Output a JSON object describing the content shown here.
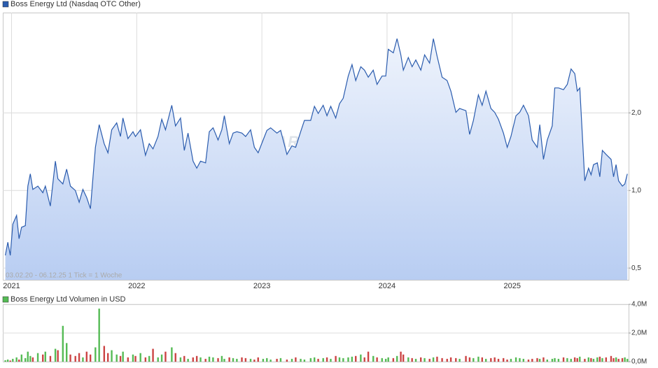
{
  "chart_data": [
    {
      "type": "line",
      "log": true,
      "grid": true,
      "annotation": "03.02.20 - 06.12.25   1 Tick = 1 Woche",
      "watermark": "ARIVA.DE",
      "xlim": [
        2020.93,
        2025.93
      ],
      "xticks": [
        2021,
        2022,
        2023,
        2024,
        2025
      ],
      "ylim": [
        0.45,
        4.9
      ],
      "yticks": [
        {
          "value": 0.5,
          "label": "0,5"
        },
        {
          "value": 1.0,
          "label": "1,0"
        },
        {
          "value": 2.0,
          "label": "2,0"
        }
      ],
      "x": [
        2020.95,
        2020.97,
        2020.99,
        2021.01,
        2021.04,
        2021.06,
        2021.08,
        2021.11,
        2021.13,
        2021.15,
        2021.17,
        2021.21,
        2021.25,
        2021.27,
        2021.31,
        2021.35,
        2021.37,
        2021.41,
        2021.44,
        2021.47,
        2021.51,
        2021.54,
        2021.57,
        2021.6,
        2021.63,
        2021.67,
        2021.7,
        2021.74,
        2021.77,
        2021.8,
        2021.84,
        2021.87,
        2021.89,
        2021.93,
        2021.97,
        2021.99,
        2022.03,
        2022.07,
        2022.1,
        2022.13,
        2022.17,
        2022.2,
        2022.23,
        2022.28,
        2022.31,
        2022.35,
        2022.38,
        2022.41,
        2022.45,
        2022.48,
        2022.51,
        2022.55,
        2022.58,
        2022.61,
        2022.65,
        2022.68,
        2022.7,
        2022.74,
        2022.77,
        2022.8,
        2022.84,
        2022.87,
        2022.91,
        2022.94,
        2022.97,
        2023.01,
        2023.04,
        2023.07,
        2023.12,
        2023.15,
        2023.2,
        2023.24,
        2023.27,
        2023.31,
        2023.34,
        2023.39,
        2023.42,
        2023.45,
        2023.49,
        2023.52,
        2023.55,
        2023.59,
        2023.62,
        2023.65,
        2023.69,
        2023.72,
        2023.75,
        2023.79,
        2023.82,
        2023.85,
        2023.89,
        2023.92,
        2023.96,
        2023.99,
        2024.01,
        2024.05,
        2024.08,
        2024.11,
        2024.13,
        2024.17,
        2024.2,
        2024.23,
        2024.27,
        2024.3,
        2024.34,
        2024.37,
        2024.4,
        2024.44,
        2024.48,
        2024.51,
        2024.55,
        2024.58,
        2024.63,
        2024.66,
        2024.69,
        2024.73,
        2024.76,
        2024.79,
        2024.83,
        2024.86,
        2024.89,
        2024.93,
        2024.96,
        2024.99,
        2025.03,
        2025.06,
        2025.09,
        2025.13,
        2025.16,
        2025.2,
        2025.22,
        2025.25,
        2025.28,
        2025.32,
        2025.34,
        2025.37,
        2025.41,
        2025.44,
        2025.47,
        2025.5,
        2025.52,
        2025.54,
        2025.58,
        2025.61,
        2025.63,
        2025.65,
        2025.68,
        2025.7,
        2025.72,
        2025.75,
        2025.79,
        2025.81,
        2025.83,
        2025.85,
        2025.88,
        2025.9,
        2025.92
      ],
      "series": [
        {
          "name": "Boss Energy Ltd (Nasdaq OTC Other)",
          "color": "#2b5cae",
          "values": [
            0.56,
            0.63,
            0.56,
            0.74,
            0.8,
            0.65,
            0.72,
            0.73,
            1.04,
            1.16,
            1.01,
            1.04,
            0.98,
            1.04,
            0.87,
            1.3,
            1.11,
            1.06,
            1.21,
            1.04,
            1.0,
            0.9,
            1.01,
            0.94,
            0.85,
            1.47,
            1.8,
            1.52,
            1.4,
            1.72,
            1.83,
            1.62,
            1.91,
            1.59,
            1.69,
            1.62,
            1.72,
            1.37,
            1.52,
            1.45,
            1.62,
            1.89,
            1.72,
            2.14,
            1.78,
            1.91,
            1.43,
            1.67,
            1.3,
            1.22,
            1.3,
            1.28,
            1.69,
            1.75,
            1.57,
            1.72,
            1.95,
            1.52,
            1.67,
            1.69,
            1.67,
            1.62,
            1.72,
            1.47,
            1.4,
            1.57,
            1.71,
            1.75,
            1.67,
            1.71,
            1.38,
            1.49,
            1.47,
            1.69,
            1.87,
            1.87,
            2.12,
            1.99,
            2.14,
            1.95,
            2.12,
            1.91,
            2.17,
            2.28,
            2.78,
            3.08,
            2.67,
            3.02,
            2.93,
            2.75,
            2.93,
            2.58,
            2.78,
            2.78,
            3.53,
            3.42,
            3.88,
            3.36,
            2.93,
            3.28,
            3.02,
            3.21,
            2.93,
            3.36,
            3.12,
            3.88,
            3.32,
            2.75,
            2.67,
            2.43,
            2.01,
            2.08,
            2.04,
            1.65,
            1.87,
            2.35,
            2.14,
            2.43,
            2.08,
            2.01,
            1.89,
            1.67,
            1.47,
            1.62,
            1.95,
            2.01,
            2.14,
            1.95,
            1.57,
            1.47,
            1.8,
            1.32,
            1.57,
            1.78,
            2.5,
            2.5,
            2.46,
            2.58,
            2.96,
            2.84,
            2.43,
            2.5,
            1.09,
            1.22,
            1.15,
            1.26,
            1.28,
            1.13,
            1.43,
            1.38,
            1.32,
            1.13,
            1.26,
            1.09,
            1.04,
            1.06,
            1.16
          ]
        }
      ]
    },
    {
      "type": "bar",
      "grid": true,
      "xlim": [
        2020.93,
        2025.93
      ],
      "ylim": [
        0,
        4000000
      ],
      "yticks": [
        {
          "value": 0,
          "label": "0,0M"
        },
        {
          "value": 2000000,
          "label": "2,0M"
        },
        {
          "value": 4000000,
          "label": "4,0M"
        }
      ],
      "x": [
        2020.95,
        2020.97,
        2020.99,
        2021.01,
        2021.04,
        2021.06,
        2021.08,
        2021.11,
        2021.13,
        2021.15,
        2021.17,
        2021.21,
        2021.25,
        2021.27,
        2021.31,
        2021.35,
        2021.37,
        2021.41,
        2021.44,
        2021.47,
        2021.51,
        2021.54,
        2021.57,
        2021.6,
        2021.63,
        2021.67,
        2021.7,
        2021.74,
        2021.77,
        2021.8,
        2021.84,
        2021.87,
        2021.89,
        2021.93,
        2021.97,
        2021.99,
        2022.03,
        2022.07,
        2022.1,
        2022.13,
        2022.17,
        2022.2,
        2022.23,
        2022.28,
        2022.31,
        2022.35,
        2022.38,
        2022.41,
        2022.45,
        2022.48,
        2022.51,
        2022.55,
        2022.58,
        2022.61,
        2022.65,
        2022.68,
        2022.7,
        2022.74,
        2022.77,
        2022.8,
        2022.84,
        2022.87,
        2022.91,
        2022.94,
        2022.97,
        2023.01,
        2023.04,
        2023.07,
        2023.12,
        2023.15,
        2023.2,
        2023.24,
        2023.27,
        2023.31,
        2023.34,
        2023.39,
        2023.42,
        2023.45,
        2023.49,
        2023.52,
        2023.55,
        2023.59,
        2023.62,
        2023.65,
        2023.69,
        2023.72,
        2023.75,
        2023.79,
        2023.82,
        2023.85,
        2023.89,
        2023.92,
        2023.96,
        2023.99,
        2024.01,
        2024.05,
        2024.08,
        2024.11,
        2024.13,
        2024.17,
        2024.2,
        2024.23,
        2024.27,
        2024.3,
        2024.34,
        2024.37,
        2024.4,
        2024.44,
        2024.48,
        2024.51,
        2024.55,
        2024.58,
        2024.63,
        2024.66,
        2024.69,
        2024.73,
        2024.76,
        2024.79,
        2024.83,
        2024.86,
        2024.89,
        2024.93,
        2024.96,
        2024.99,
        2025.03,
        2025.06,
        2025.09,
        2025.13,
        2025.16,
        2025.2,
        2025.22,
        2025.25,
        2025.28,
        2025.32,
        2025.34,
        2025.37,
        2025.41,
        2025.44,
        2025.47,
        2025.5,
        2025.52,
        2025.54,
        2025.58,
        2025.61,
        2025.63,
        2025.65,
        2025.68,
        2025.7,
        2025.72,
        2025.75,
        2025.79,
        2025.81,
        2025.83,
        2025.85,
        2025.88,
        2025.9,
        2025.92
      ],
      "series": [
        {
          "name": "Boss Energy Ltd Volumen in USD",
          "color": "#55bb55",
          "values": [
            100000,
            150000,
            80000,
            200000,
            300000,
            150000,
            500000,
            250000,
            700000,
            400000,
            300000,
            600000,
            500000,
            700000,
            400000,
            900000,
            800000,
            2500000,
            1300000,
            500000,
            400000,
            600000,
            300000,
            700000,
            500000,
            1000000,
            3700000,
            1100000,
            600000,
            800000,
            500000,
            400000,
            700000,
            300000,
            500000,
            400000,
            600000,
            300000,
            400000,
            900000,
            300000,
            500000,
            700000,
            1000000,
            600000,
            300000,
            400000,
            200000,
            300000,
            400000,
            300000,
            200000,
            350000,
            300000,
            250000,
            400000,
            200000,
            300000,
            250000,
            200000,
            300000,
            250000,
            200000,
            150000,
            300000,
            200000,
            250000,
            150000,
            200000,
            250000,
            150000,
            200000,
            300000,
            200000,
            150000,
            250000,
            300000,
            200000,
            250000,
            300000,
            200000,
            400000,
            300000,
            250000,
            300000,
            350000,
            400000,
            500000,
            300000,
            700000,
            400000,
            300000,
            250000,
            200000,
            300000,
            250000,
            400000,
            700000,
            500000,
            300000,
            250000,
            200000,
            300000,
            250000,
            200000,
            300000,
            350000,
            250000,
            200000,
            300000,
            250000,
            200000,
            400000,
            300000,
            250000,
            350000,
            300000,
            200000,
            250000,
            300000,
            200000,
            250000,
            150000,
            200000,
            300000,
            250000,
            200000,
            150000,
            200000,
            250000,
            200000,
            300000,
            150000,
            200000,
            250000,
            200000,
            300000,
            250000,
            200000,
            300000,
            250000,
            350000,
            200000,
            300000,
            250000,
            200000,
            300000,
            350000,
            250000,
            300000,
            400000,
            250000,
            300000,
            200000,
            250000,
            300000,
            200000
          ],
          "colors": [
            "#5b5",
            "#5b5",
            "#c44",
            "#5b5",
            "#5b5",
            "#c44",
            "#5b5",
            "#5b5",
            "#5b5",
            "#5b5",
            "#c44",
            "#5b5",
            "#c44",
            "#5b5",
            "#c44",
            "#5b5",
            "#c44",
            "#5b5",
            "#5b5",
            "#c44",
            "#c44",
            "#c44",
            "#5b5",
            "#c44",
            "#c44",
            "#5b5",
            "#5b5",
            "#c44",
            "#c44",
            "#5b5",
            "#5b5",
            "#c44",
            "#5b5",
            "#c44",
            "#5b5",
            "#c44",
            "#5b5",
            "#c44",
            "#5b5",
            "#c44",
            "#5b5",
            "#5b5",
            "#c44",
            "#5b5",
            "#c44",
            "#5b5",
            "#c44",
            "#5b5",
            "#c44",
            "#c44",
            "#5b5",
            "#c44",
            "#5b5",
            "#5b5",
            "#c44",
            "#5b5",
            "#5b5",
            "#c44",
            "#5b5",
            "#5b5",
            "#c44",
            "#c44",
            "#5b5",
            "#c44",
            "#c44",
            "#5b5",
            "#5b5",
            "#5b5",
            "#c44",
            "#5b5",
            "#c44",
            "#5b5",
            "#c44",
            "#5b5",
            "#5b5",
            "#5b5",
            "#5b5",
            "#c44",
            "#5b5",
            "#c44",
            "#5b5",
            "#c44",
            "#5b5",
            "#5b5",
            "#5b5",
            "#5b5",
            "#c44",
            "#5b5",
            "#c44",
            "#c44",
            "#5b5",
            "#c44",
            "#5b5",
            "#5b5",
            "#5b5",
            "#c44",
            "#5b5",
            "#c44",
            "#c44",
            "#5b5",
            "#c44",
            "#5b5",
            "#c44",
            "#5b5",
            "#c44",
            "#5b5",
            "#c44",
            "#c44",
            "#c44",
            "#c44",
            "#c44",
            "#5b5",
            "#c44",
            "#c44",
            "#5b5",
            "#5b5",
            "#c44",
            "#5b5",
            "#c44",
            "#c44",
            "#c44",
            "#c44",
            "#c44",
            "#5b5",
            "#5b5",
            "#5b5",
            "#5b5",
            "#c44",
            "#c44",
            "#c44",
            "#5b5",
            "#c44",
            "#5b5",
            "#5b5",
            "#5b5",
            "#5b5",
            "#c44",
            "#5b5",
            "#5b5",
            "#c44",
            "#c44",
            "#5b5",
            "#c44",
            "#5b5",
            "#c44",
            "#5b5",
            "#5b5",
            "#c44",
            "#5b5",
            "#c44",
            "#c44",
            "#c44",
            "#5b5",
            "#c44",
            "#c44",
            "#5b5",
            "#5b5"
          ]
        }
      ]
    }
  ]
}
